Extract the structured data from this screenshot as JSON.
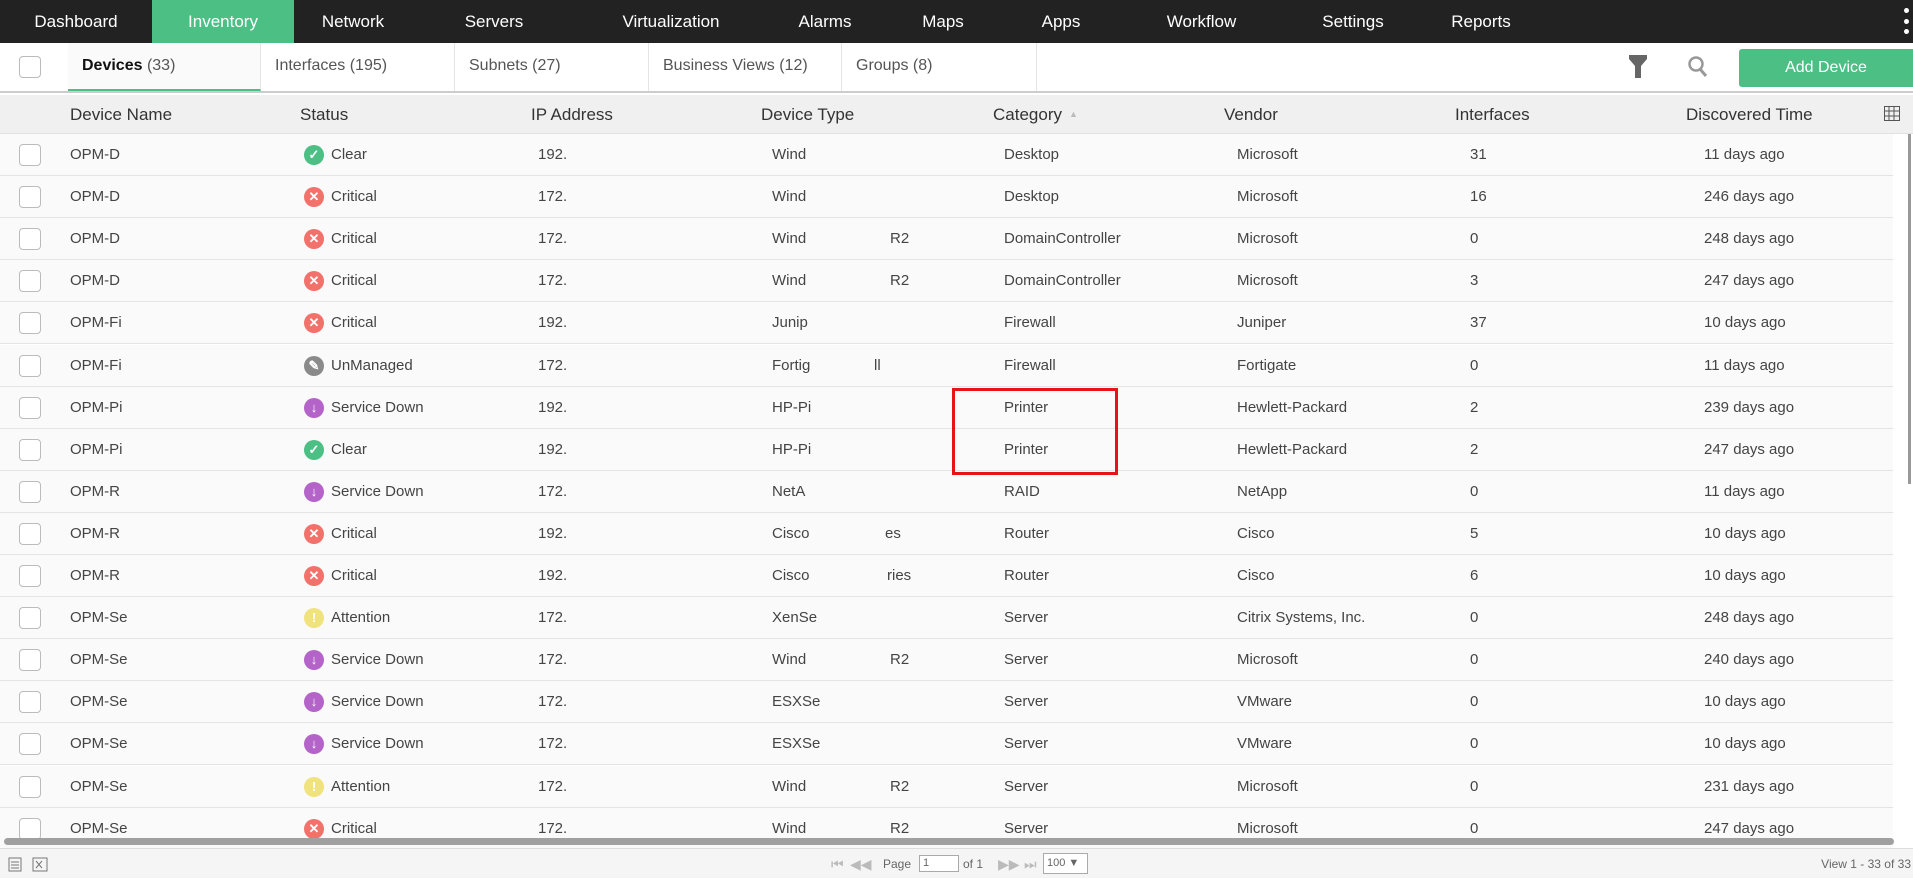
{
  "nav": {
    "items": [
      "Dashboard",
      "Inventory",
      "Network",
      "Servers",
      "Virtualization",
      "Alarms",
      "Maps",
      "Apps",
      "Workflow",
      "Settings",
      "Reports"
    ],
    "active": "Inventory"
  },
  "tabs": [
    {
      "label": "Devices",
      "count": "(33)"
    },
    {
      "label": "Interfaces",
      "count": "(195)"
    },
    {
      "label": "Subnets",
      "count": "(27)"
    },
    {
      "label": "Business Views",
      "count": "(12)"
    },
    {
      "label": "Groups",
      "count": "(8)"
    }
  ],
  "toolbar": {
    "add_device": "Add Device",
    "filter_icon": "filter-icon",
    "search_icon": "search-icon"
  },
  "columns": [
    "Device Name",
    "Status",
    "IP Address",
    "Device Type",
    "Category",
    "Vendor",
    "Interfaces",
    "Discovered Time"
  ],
  "sorted_column": "Category",
  "status_colors": {
    "Clear": "#4bbf84",
    "Critical": "#f2716b",
    "UnManaged": "#8a8a8a",
    "Service Down": "#b463c8",
    "Attention": "#f0e27c"
  },
  "highlight_color": "#e8121a",
  "rows": [
    {
      "name": "OPM-D",
      "status": "Clear",
      "ip": "192.",
      "type": "Wind",
      "type_tail": "",
      "category": "Desktop",
      "vendor": "Microsoft",
      "interfaces": "31",
      "discovered": "11 days ago"
    },
    {
      "name": "OPM-D",
      "status": "Critical",
      "ip": "172.",
      "type": "Wind",
      "type_tail": "",
      "category": "Desktop",
      "vendor": "Microsoft",
      "interfaces": "16",
      "discovered": "246 days ago"
    },
    {
      "name": "OPM-D",
      "status": "Critical",
      "ip": "172.",
      "type": "Wind",
      "type_tail": "R2",
      "category": "DomainController",
      "vendor": "Microsoft",
      "interfaces": "0",
      "discovered": "248 days ago"
    },
    {
      "name": "OPM-D",
      "status": "Critical",
      "ip": "172.",
      "type": "Wind",
      "type_tail": "R2",
      "category": "DomainController",
      "vendor": "Microsoft",
      "interfaces": "3",
      "discovered": "247 days ago"
    },
    {
      "name": "OPM-Fi",
      "status": "Critical",
      "ip": "192.",
      "type": "Junip",
      "type_tail": "",
      "category": "Firewall",
      "vendor": "Juniper",
      "interfaces": "37",
      "discovered": "10 days ago"
    },
    {
      "name": "OPM-Fi",
      "status": "UnManaged",
      "ip": "172.",
      "type": "Fortig",
      "type_tail": "ll",
      "category": "Firewall",
      "vendor": "Fortigate",
      "interfaces": "0",
      "discovered": "11 days ago"
    },
    {
      "name": "OPM-Pi",
      "status": "Service Down",
      "ip": "192.",
      "type": "HP-Pi",
      "type_tail": "",
      "category": "Printer",
      "vendor": "Hewlett-Packard",
      "interfaces": "2",
      "discovered": "239 days ago"
    },
    {
      "name": "OPM-Pi",
      "status": "Clear",
      "ip": "192.",
      "type": "HP-Pi",
      "type_tail": "",
      "category": "Printer",
      "vendor": "Hewlett-Packard",
      "interfaces": "2",
      "discovered": "247 days ago"
    },
    {
      "name": "OPM-R",
      "status": "Service Down",
      "ip": "172.",
      "type": "NetA",
      "type_tail": "",
      "category": "RAID",
      "vendor": "NetApp",
      "interfaces": "0",
      "discovered": "11 days ago"
    },
    {
      "name": "OPM-R",
      "status": "Critical",
      "ip": "192.",
      "type": "Cisco",
      "type_tail": "es",
      "category": "Router",
      "vendor": "Cisco",
      "interfaces": "5",
      "discovered": "10 days ago"
    },
    {
      "name": "OPM-R",
      "status": "Critical",
      "ip": "192.",
      "type": "Cisco",
      "type_tail": "ries",
      "category": "Router",
      "vendor": "Cisco",
      "interfaces": "6",
      "discovered": "10 days ago"
    },
    {
      "name": "OPM-Se",
      "status": "Attention",
      "ip": "172.",
      "type": "XenSe",
      "type_tail": "",
      "category": "Server",
      "vendor": "Citrix Systems, Inc.",
      "interfaces": "0",
      "discovered": "248 days ago"
    },
    {
      "name": "OPM-Se",
      "status": "Service Down",
      "ip": "172.",
      "type": "Wind",
      "type_tail": "R2",
      "category": "Server",
      "vendor": "Microsoft",
      "interfaces": "0",
      "discovered": "240 days ago"
    },
    {
      "name": "OPM-Se",
      "status": "Service Down",
      "ip": "172.",
      "type": "ESXSe",
      "type_tail": "",
      "category": "Server",
      "vendor": "VMware",
      "interfaces": "0",
      "discovered": "10 days ago"
    },
    {
      "name": "OPM-Se",
      "status": "Service Down",
      "ip": "172.",
      "type": "ESXSe",
      "type_tail": "",
      "category": "Server",
      "vendor": "VMware",
      "interfaces": "0",
      "discovered": "10 days ago"
    },
    {
      "name": "OPM-Se",
      "status": "Attention",
      "ip": "172.",
      "type": "Wind",
      "type_tail": "R2",
      "category": "Server",
      "vendor": "Microsoft",
      "interfaces": "0",
      "discovered": "231 days ago"
    },
    {
      "name": "OPM-Se",
      "status": "Critical",
      "ip": "172.",
      "type": "Wind",
      "type_tail": "R2",
      "category": "Server",
      "vendor": "Microsoft",
      "interfaces": "0",
      "discovered": "247 days ago"
    }
  ],
  "footer": {
    "page_label": "Page",
    "page_value": "1",
    "of_label": "of 1",
    "page_size": "100 ▼",
    "view_info": "View 1 - 33 of 33"
  }
}
